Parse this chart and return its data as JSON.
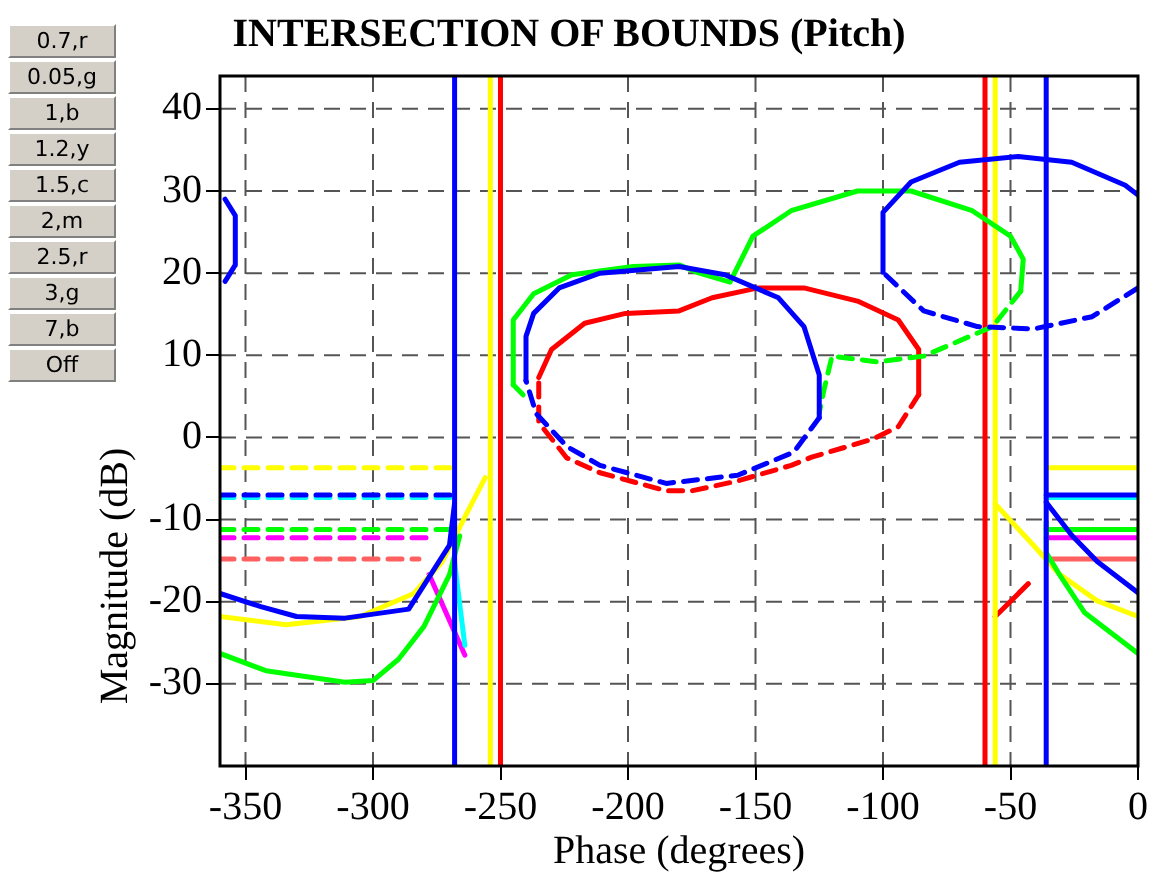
{
  "chart_data": {
    "type": "line",
    "title": "INTERSECTION OF BOUNDS (Pitch)",
    "xlabel": "Phase (degrees)",
    "ylabel": "Magnitude (dB)",
    "annotations": [
      "0.7,r",
      "0.05,g",
      "1,b",
      "1.2,y",
      "1.5,c",
      "2,m",
      "2.5,r",
      "3,g",
      "7,b",
      "Off"
    ],
    "xlim": [
      -360,
      0
    ],
    "ylim": [
      -40,
      44
    ],
    "xticks": [
      -350,
      -300,
      -250,
      -200,
      -150,
      -100,
      -50,
      0
    ],
    "yticks": [
      -30,
      -20,
      -10,
      0,
      10,
      20,
      30,
      40
    ],
    "grid": true,
    "legend": false,
    "marker": "none",
    "series": [
      {
        "color": "#0000ff",
        "line_style": "solid",
        "x": [
          -358,
          -354,
          -354,
          -358
        ],
        "values": [
          29,
          27,
          21,
          19
        ]
      },
      {
        "color": "#0000ff",
        "line_style": "solid",
        "x": [
          -360,
          -344,
          -330,
          -311,
          -286,
          -270,
          -268
        ],
        "values": [
          -19,
          -20.6,
          -21.8,
          -22,
          -20.9,
          -13.1,
          -8
        ]
      },
      {
        "color": "#0000ff",
        "line_style": "solid",
        "x": [
          -268,
          -268
        ],
        "values": [
          -40,
          44
        ]
      },
      {
        "color": "#0000ff",
        "line_style": "solid",
        "x": [
          -240,
          -240,
          -237,
          -227,
          -211,
          -180,
          -162,
          -141,
          -131,
          -125,
          -125
        ],
        "values": [
          6.9,
          12.3,
          15.1,
          18.2,
          20,
          20.8,
          19.8,
          17,
          13.5,
          7.6,
          2.4
        ]
      },
      {
        "color": "#0000ff",
        "line_style": "dashed",
        "x": [
          -125,
          -135,
          -157,
          -185,
          -211,
          -224,
          -236,
          -240
        ],
        "values": [
          2.4,
          -1.8,
          -4.6,
          -5.6,
          -3.4,
          -1.1,
          2.9,
          6.9
        ]
      },
      {
        "color": "#0000ff",
        "line_style": "solid",
        "x": [
          -100,
          -100,
          -89,
          -70,
          -47,
          -26,
          -5,
          0
        ],
        "values": [
          20.1,
          27.4,
          31.1,
          33.5,
          34.2,
          33.5,
          30.7,
          29.5
        ]
      },
      {
        "color": "#0000ff",
        "line_style": "dashed",
        "x": [
          0,
          -18,
          -41,
          -63,
          -84,
          -100
        ],
        "values": [
          18.2,
          14.7,
          13.2,
          13.5,
          15.4,
          20.1
        ]
      },
      {
        "color": "#0000ff",
        "line_style": "solid",
        "x": [
          -36,
          -36
        ],
        "values": [
          -40,
          44
        ]
      },
      {
        "color": "#0000ff",
        "line_style": "solid",
        "x": [
          -36,
          -26,
          -16,
          0
        ],
        "values": [
          -7.9,
          -11.9,
          -15.1,
          -18.9
        ]
      },
      {
        "color": "#00ff00",
        "line_style": "solid",
        "x": [
          -360,
          -342,
          -311,
          -300,
          -290,
          -280,
          -270,
          -266
        ],
        "values": [
          -26.3,
          -28.4,
          -29.8,
          -29.6,
          -27,
          -23,
          -16.7,
          -12
        ]
      },
      {
        "color": "#00ff00",
        "line_style": "solid",
        "x": [
          -245,
          -245,
          -237,
          -222,
          -198,
          -180,
          -172,
          -160,
          -151,
          -136,
          -110,
          -89,
          -65,
          -50,
          -45,
          -46
        ],
        "values": [
          6.4,
          14.3,
          17.5,
          19.8,
          20.8,
          21,
          20,
          18.9,
          24.5,
          27.6,
          30,
          30,
          27.6,
          24.5,
          21.7,
          17.8
        ]
      },
      {
        "color": "#00ff00",
        "line_style": "dashed",
        "x": [
          -46,
          -57,
          -84,
          -102,
          -120,
          -123,
          -125
        ],
        "values": [
          17.8,
          13.5,
          9.9,
          9.2,
          9.9,
          6,
          3
        ]
      },
      {
        "color": "#00ff00",
        "line_style": "dashed",
        "x": [
          -245,
          -239
        ],
        "values": [
          6.4,
          4.5
        ]
      },
      {
        "color": "#00ff00",
        "line_style": "solid",
        "x": [
          -36,
          -36,
          -31,
          -21,
          0
        ],
        "values": [
          -10.3,
          -14,
          -16.6,
          -21.3,
          -26.3
        ]
      },
      {
        "color": "#ffff00",
        "line_style": "solid",
        "x": [
          -254,
          -254
        ],
        "values": [
          -40,
          44
        ]
      },
      {
        "color": "#ffff00",
        "line_style": "solid",
        "x": [
          -56,
          -56
        ],
        "values": [
          -40,
          44
        ]
      },
      {
        "color": "#ffff00",
        "line_style": "solid",
        "x": [
          -360,
          -334,
          -305,
          -284,
          -273,
          -264,
          -256
        ],
        "values": [
          -21.8,
          -22.8,
          -21.8,
          -19,
          -15.2,
          -9.7,
          -4.9
        ]
      },
      {
        "color": "#ffff00",
        "line_style": "solid",
        "x": [
          -56,
          -42,
          -31,
          -16,
          0
        ],
        "values": [
          -8.1,
          -12.8,
          -16.6,
          -19.9,
          -21.8
        ]
      },
      {
        "color": "#ff0000",
        "line_style": "solid",
        "x": [
          -250,
          -250
        ],
        "values": [
          -40,
          44
        ]
      },
      {
        "color": "#ff0000",
        "line_style": "solid",
        "x": [
          -60,
          -60
        ],
        "values": [
          -40,
          44
        ]
      },
      {
        "color": "#ff0000",
        "line_style": "solid",
        "x": [
          -235,
          -230,
          -217,
          -201,
          -180,
          -167,
          -149,
          -131,
          -110,
          -94,
          -86,
          -86
        ],
        "values": [
          7.3,
          10.7,
          13.9,
          15.1,
          15.4,
          17,
          18.2,
          18.2,
          16.6,
          14.3,
          10.7,
          5.2
        ]
      },
      {
        "color": "#ff0000",
        "line_style": "dashed",
        "x": [
          -86,
          -94,
          -104,
          -128,
          -136,
          -157,
          -175,
          -185,
          -211,
          -224,
          -235,
          -235
        ],
        "values": [
          5.2,
          1.3,
          -0.2,
          -2.4,
          -3.4,
          -5.3,
          -6.5,
          -6.5,
          -4.3,
          -2.5,
          1.8,
          7.3
        ]
      },
      {
        "color": "#ff0000",
        "line_style": "solid",
        "x": [
          -56,
          -43
        ],
        "values": [
          -21.8,
          -17.8
        ]
      },
      {
        "color": "#ffff00",
        "line_style": "dashed",
        "x": [
          -360,
          -268
        ],
        "values": [
          -3.7,
          -3.7
        ]
      },
      {
        "color": "#0000ff",
        "line_style": "dashed",
        "x": [
          -360,
          -268
        ],
        "values": [
          -7,
          -7
        ]
      },
      {
        "color": "#00ffff",
        "line_style": "dashed",
        "x": [
          -360,
          -268
        ],
        "values": [
          -7.3,
          -7.3
        ]
      },
      {
        "color": "#00ff00",
        "line_style": "dashed",
        "x": [
          -360,
          -268
        ],
        "values": [
          -11.2,
          -11.2
        ]
      },
      {
        "color": "#ff00ff",
        "line_style": "dashed",
        "x": [
          -360,
          -278
        ],
        "values": [
          -12.2,
          -12.2
        ]
      },
      {
        "color": "#ff6060",
        "line_style": "dashed",
        "x": [
          -360,
          -282
        ],
        "values": [
          -14.8,
          -14.8
        ]
      },
      {
        "color": "#ffff00",
        "line_style": "solid",
        "x": [
          -36,
          0
        ],
        "values": [
          -3.7,
          -3.7
        ]
      },
      {
        "color": "#0000ff",
        "line_style": "solid",
        "x": [
          -36,
          0
        ],
        "values": [
          -7,
          -7
        ]
      },
      {
        "color": "#00ffff",
        "line_style": "solid",
        "x": [
          -36,
          0
        ],
        "values": [
          -7.3,
          -7.3
        ]
      },
      {
        "color": "#00ff00",
        "line_style": "solid",
        "x": [
          -36,
          0
        ],
        "values": [
          -11.2,
          -11.2
        ]
      },
      {
        "color": "#ff00ff",
        "line_style": "solid",
        "x": [
          -36,
          0
        ],
        "values": [
          -12.2,
          -12.2
        ]
      },
      {
        "color": "#ff6060",
        "line_style": "solid",
        "x": [
          -36,
          0
        ],
        "values": [
          -14.8,
          -14.8
        ]
      },
      {
        "color": "#00ffff",
        "line_style": "solid",
        "x": [
          -268,
          -264
        ],
        "values": [
          -15.2,
          -25.3
        ]
      },
      {
        "color": "#ff00ff",
        "line_style": "solid",
        "x": [
          -278,
          -264
        ],
        "values": [
          -16.7,
          -26.5
        ]
      }
    ]
  }
}
